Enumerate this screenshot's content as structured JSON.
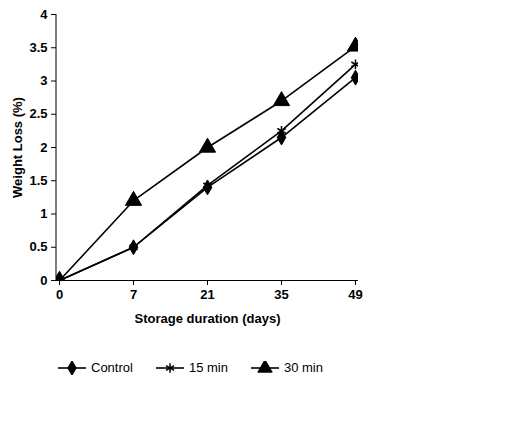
{
  "chart_data": {
    "type": "line",
    "x_label": "Storage duration (days)",
    "y_label": "Weight Loss (%)",
    "categories": [
      "0",
      "7",
      "21",
      "35",
      "49"
    ],
    "series": [
      {
        "name": "Control",
        "color": "#000000",
        "marker": "diamond",
        "values": [
          0,
          0.5,
          1.4,
          2.15,
          3.05
        ]
      },
      {
        "name": "15 min",
        "color": "#000000",
        "marker": "asterisk",
        "values": [
          0,
          0.5,
          1.43,
          2.25,
          3.25
        ]
      },
      {
        "name": "30 min",
        "color": "#000000",
        "marker": "triangle",
        "values": [
          0,
          1.2,
          2.0,
          2.7,
          3.52
        ]
      }
    ],
    "ylim": [
      0,
      4
    ],
    "yticks": [
      0,
      0.5,
      1,
      1.5,
      2,
      2.5,
      3,
      3.5,
      4
    ],
    "grid": false,
    "legend": "bottom"
  }
}
